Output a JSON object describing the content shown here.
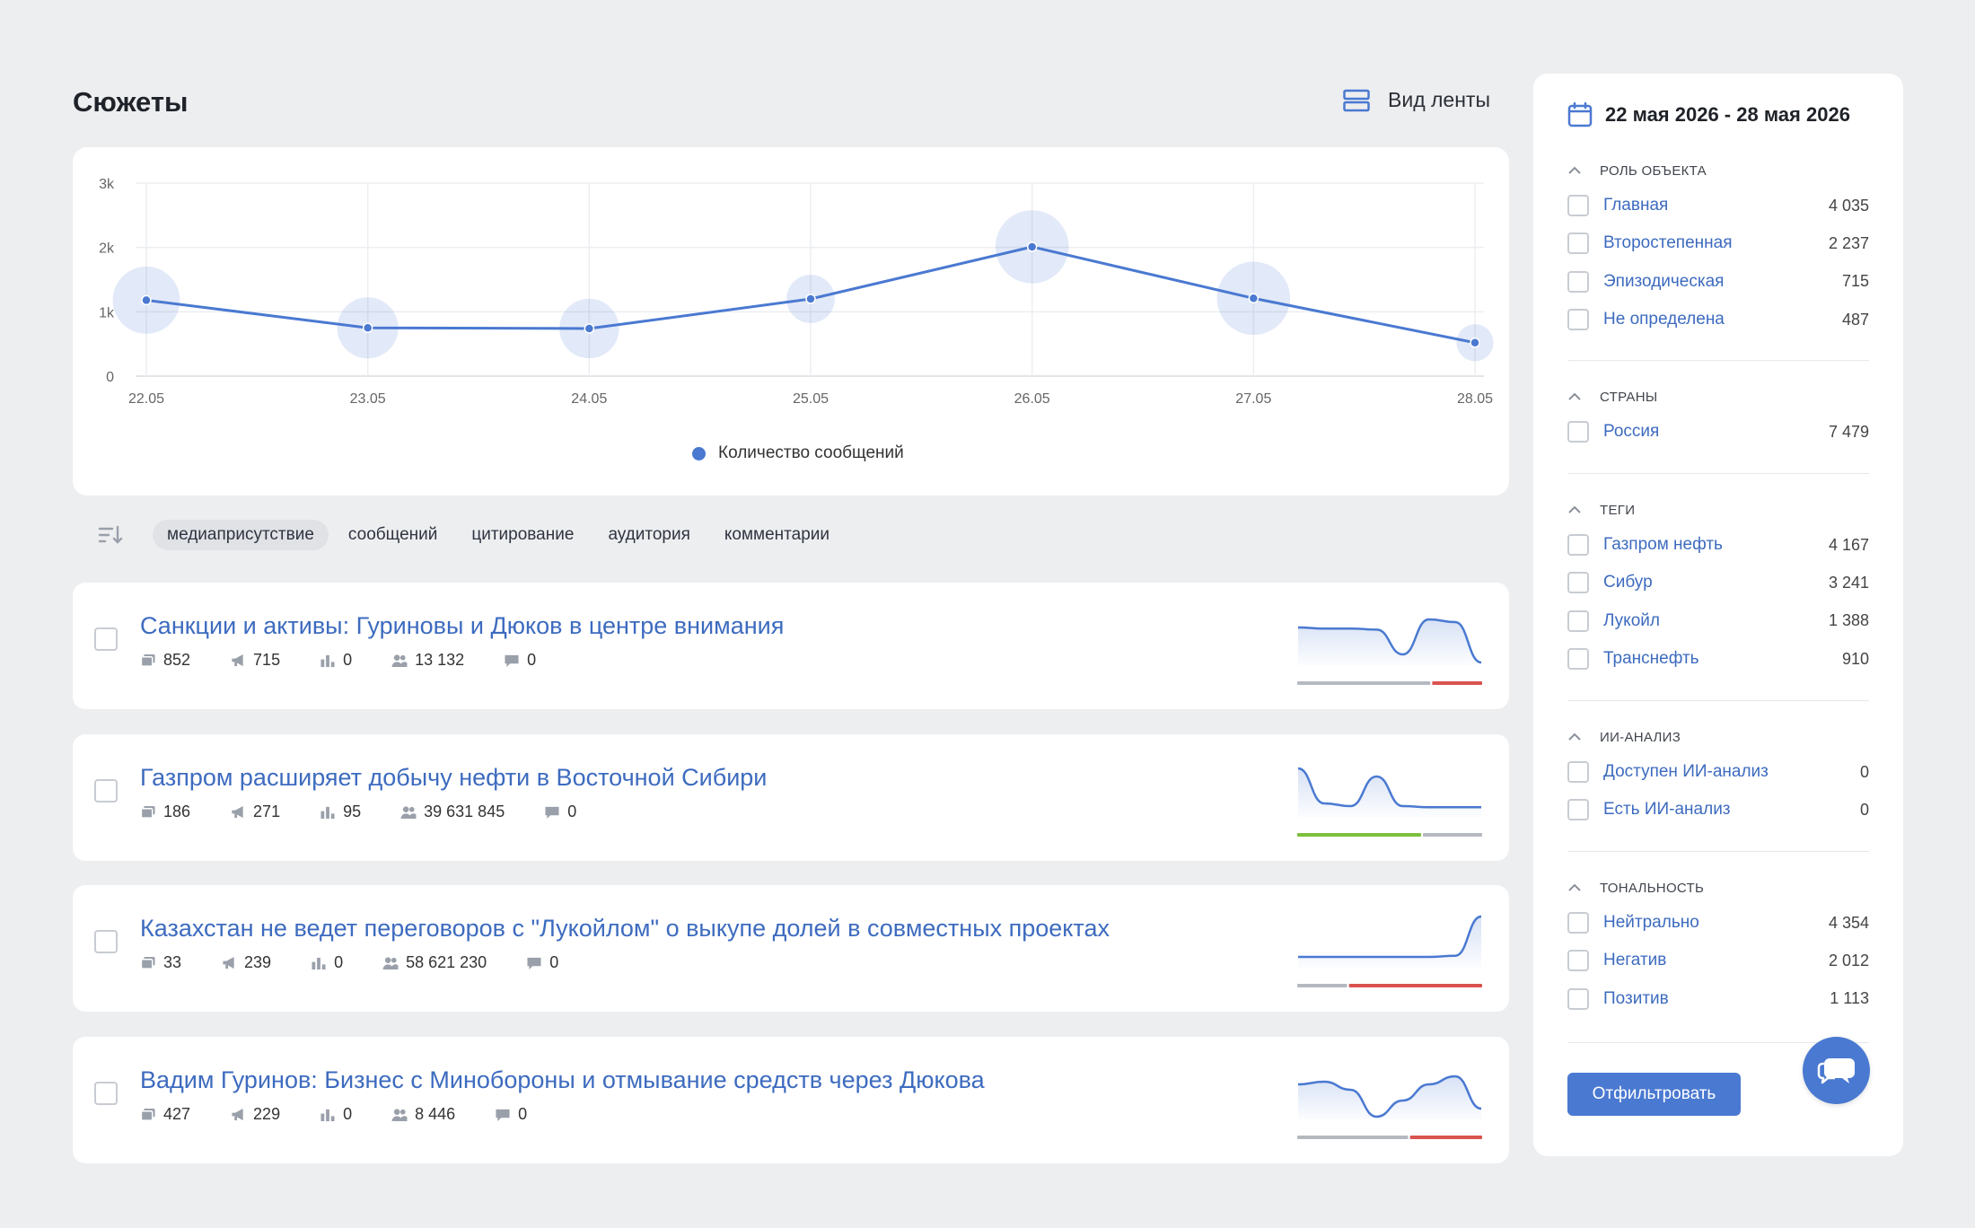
{
  "header": {
    "title": "Сюжеты",
    "feed_view_label": "Вид ленты"
  },
  "colors": {
    "accent": "#4a79d1",
    "link": "#3d6bbf",
    "positive": "#7cbf3c",
    "negative": "#d9534f",
    "neutral": "#b5b9c0"
  },
  "chart_data": {
    "type": "line",
    "categories": [
      "22.05",
      "23.05",
      "24.05",
      "25.05",
      "26.05",
      "27.05",
      "28.05"
    ],
    "series": [
      {
        "name": "Количество сообщений",
        "values": [
          1180,
          750,
          740,
          1200,
          2010,
          1210,
          520
        ]
      }
    ],
    "bubble_sizes": [
      0.7,
      0.62,
      0.6,
      0.45,
      0.78,
      0.78,
      0.3
    ],
    "ylim": [
      0,
      3000
    ],
    "y_ticks": [
      "0",
      "1k",
      "2k",
      "3k"
    ],
    "grid": true,
    "legend_position": "bottom-center"
  },
  "sort": {
    "options": [
      "медиаприсутствие",
      "сообщений",
      "цитирование",
      "аудитория",
      "комментарии"
    ],
    "active_index": 0
  },
  "stories": [
    {
      "title": "Санкции и активы: Гуриновы и Дюков в центре внимания",
      "metrics": [
        "852",
        "715",
        "0",
        "13 132",
        "0"
      ],
      "sparkline": [
        0.7,
        0.68,
        0.68,
        0.66,
        0.2,
        0.85,
        0.8,
        0.05
      ],
      "sentiment": {
        "neutral": 0.72,
        "positive": 0,
        "negative": 0.28,
        "order": [
          "neutral",
          "negative"
        ]
      }
    },
    {
      "title": "Газпром расширяет добычу нефти в Восточной Сибири",
      "metrics": [
        "186",
        "271",
        "95",
        "39 631 845",
        "0"
      ],
      "sparkline": [
        0.9,
        0.25,
        0.2,
        0.75,
        0.2,
        0.18,
        0.18,
        0.18
      ],
      "sentiment": {
        "neutral": 0.33,
        "positive": 0.67,
        "negative": 0,
        "order": [
          "positive",
          "neutral"
        ]
      }
    },
    {
      "title": "Казахстан не ведет переговоров с \"Лукойлом\" о выкупе долей в совместных проектах",
      "metrics": [
        "33",
        "239",
        "0",
        "58 621 230",
        "0"
      ],
      "sparkline": [
        0.2,
        0.2,
        0.2,
        0.2,
        0.2,
        0.2,
        0.22,
        0.95
      ],
      "sentiment": {
        "neutral": 0.27,
        "positive": 0,
        "negative": 0.73,
        "order": [
          "neutral",
          "negative"
        ]
      }
    },
    {
      "title": "Вадим Гуринов: Бизнес с Минобороны и отмывание средств через Дюкова",
      "metrics": [
        "427",
        "229",
        "0",
        "8 446",
        "0"
      ],
      "sparkline": [
        0.65,
        0.7,
        0.55,
        0.05,
        0.35,
        0.65,
        0.8,
        0.2
      ],
      "sentiment": {
        "neutral": 0.6,
        "positive": 0,
        "negative": 0.4,
        "order": [
          "neutral",
          "negative"
        ]
      }
    }
  ],
  "filters": {
    "date_range": "22 мая 2026 - 28 мая 2026",
    "sections": [
      {
        "title": "РОЛЬ ОБЪЕКТА",
        "items": [
          {
            "label": "Главная",
            "count": "4 035"
          },
          {
            "label": "Второстепенная",
            "count": "2 237"
          },
          {
            "label": "Эпизодическая",
            "count": "715"
          },
          {
            "label": "Не определена",
            "count": "487"
          }
        ]
      },
      {
        "title": "СТРАНЫ",
        "items": [
          {
            "label": "Россия",
            "count": "7 479"
          }
        ]
      },
      {
        "title": "ТЕГИ",
        "items": [
          {
            "label": "Газпром нефть",
            "count": "4 167"
          },
          {
            "label": "Сибур",
            "count": "3 241"
          },
          {
            "label": "Лукойл",
            "count": "1 388"
          },
          {
            "label": "Транснефть",
            "count": "910"
          }
        ]
      },
      {
        "title": "ИИ-АНАЛИЗ",
        "items": [
          {
            "label": "Доступен ИИ-анализ",
            "count": "0"
          },
          {
            "label": "Есть ИИ-анализ",
            "count": "0"
          }
        ]
      },
      {
        "title": "ТОНАЛЬНОСТЬ",
        "items": [
          {
            "label": "Нейтрально",
            "count": "4 354"
          },
          {
            "label": "Негатив",
            "count": "2 012"
          },
          {
            "label": "Позитив",
            "count": "1 113"
          }
        ]
      }
    ],
    "apply_label": "Отфильтровать"
  },
  "icons": {
    "feed_view": "list-view-icon",
    "calendar": "calendar-icon",
    "sort": "sort-icon",
    "chat": "chat-icon",
    "metrics": [
      "messages-icon",
      "megaphone-icon",
      "bar-chart-icon",
      "audience-icon",
      "comment-icon"
    ]
  }
}
